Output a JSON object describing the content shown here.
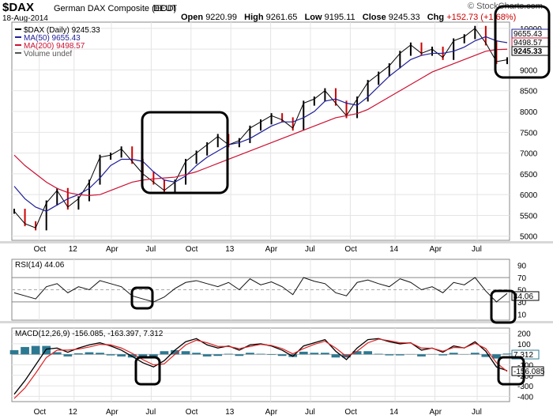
{
  "header": {
    "symbol": "$DAX",
    "name": "German DAX Composite (EOD)",
    "exchange": "DEUT",
    "date": "18-Aug-2014",
    "brand": "© StockCharts.com",
    "open_label": "Open",
    "open": "9220.99",
    "high_label": "High",
    "high": "9261.65",
    "low_label": "Low",
    "low": "9195.11",
    "close_label": "Close",
    "close": "9245.33",
    "chg_label": "Chg",
    "chg": "+152.73 (+1.68%)"
  },
  "colors": {
    "ma50": "#1f1f99",
    "ma200": "#cc1133",
    "up": "#000000",
    "down": "#cc0000",
    "rsi_fill": "#4a8a4a",
    "macd_hist": "#2d7891",
    "signal": "#dd2222"
  },
  "chart_data": [
    {
      "type": "line",
      "title": "$DAX (Daily) 9245.33",
      "legend": [
        "$DAX (Daily) 9245.33",
        "MA(50) 9655.43",
        "MA(200) 9498.57",
        "Volume undef"
      ],
      "x_tick_labels": [
        "Oct",
        "12",
        "Apr",
        "Jul",
        "Oct",
        "13",
        "Apr",
        "Jul",
        "Oct",
        "14",
        "Apr",
        "Jul"
      ],
      "y_ticks": [
        5000,
        5500,
        6000,
        6500,
        7000,
        7500,
        8000,
        8500,
        9000,
        9500,
        10000
      ],
      "ylim": [
        4900,
        10150
      ],
      "value_tags": [
        "9655.43",
        "9498.57",
        "9245.33"
      ],
      "series": [
        {
          "name": "$DAX",
          "values": [
            5600,
            5300,
            5200,
            5800,
            6100,
            5700,
            5900,
            6300,
            6900,
            6950,
            7100,
            6800,
            6500,
            6300,
            6100,
            6300,
            6800,
            7000,
            7200,
            7400,
            7200,
            7300,
            7600,
            7750,
            7900,
            7800,
            7600,
            8200,
            8300,
            8500,
            8200,
            7900,
            8300,
            8700,
            8900,
            9100,
            9400,
            9600,
            9400,
            9500,
            9300,
            9700,
            9800,
            10000,
            9650,
            9200,
            9245
          ]
        },
        {
          "name": "MA(50)",
          "values": [
            6200,
            5900,
            5700,
            5600,
            5750,
            5900,
            6000,
            6150,
            6400,
            6700,
            6850,
            6850,
            6800,
            6550,
            6350,
            6300,
            6450,
            6700,
            6900,
            7050,
            7200,
            7250,
            7350,
            7500,
            7650,
            7750,
            7750,
            7850,
            8000,
            8250,
            8300,
            8200,
            8150,
            8350,
            8600,
            8850,
            9050,
            9250,
            9350,
            9400,
            9400,
            9450,
            9550,
            9700,
            9800,
            9700,
            9655
          ]
        },
        {
          "name": "MA(200)",
          "values": [
            6950,
            6700,
            6500,
            6300,
            6150,
            6050,
            6000,
            5980,
            6000,
            6100,
            6200,
            6300,
            6350,
            6380,
            6400,
            6420,
            6480,
            6550,
            6650,
            6750,
            6850,
            6950,
            7050,
            7150,
            7250,
            7350,
            7450,
            7550,
            7650,
            7750,
            7850,
            7900,
            7950,
            8050,
            8200,
            8350,
            8500,
            8650,
            8800,
            8950,
            9050,
            9150,
            9250,
            9350,
            9450,
            9490,
            9498
          ]
        }
      ]
    },
    {
      "type": "line",
      "title": "RSI(14) 44.06",
      "y_ticks": [
        10,
        30,
        50,
        70,
        90
      ],
      "ylim": [
        0,
        100
      ],
      "value_tag": "44.06",
      "series": [
        {
          "name": "RSI(14)",
          "values": [
            45,
            40,
            35,
            55,
            60,
            45,
            55,
            50,
            65,
            60,
            55,
            40,
            35,
            30,
            38,
            52,
            62,
            65,
            60,
            55,
            62,
            50,
            68,
            58,
            63,
            55,
            42,
            70,
            64,
            60,
            45,
            40,
            62,
            66,
            60,
            55,
            68,
            62,
            50,
            55,
            45,
            62,
            58,
            70,
            48,
            30,
            44
          ]
        }
      ]
    },
    {
      "type": "line",
      "title": "MACD(12,26,9) -156.085, -163.397, 7.312",
      "y_ticks": [
        -400,
        -300,
        -200,
        -100,
        0,
        100,
        200
      ],
      "ylim": [
        -450,
        250
      ],
      "value_tags": [
        "7.312",
        "-156.085"
      ],
      "series": [
        {
          "name": "MACD",
          "values": [
            -380,
            -250,
            -100,
            50,
            60,
            20,
            60,
            90,
            110,
            80,
            40,
            -20,
            -80,
            -120,
            -60,
            40,
            120,
            150,
            90,
            60,
            80,
            40,
            90,
            100,
            80,
            40,
            -20,
            80,
            110,
            140,
            30,
            -50,
            60,
            140,
            150,
            120,
            100,
            110,
            40,
            60,
            20,
            80,
            60,
            120,
            30,
            -120,
            -156
          ]
        },
        {
          "name": "Signal",
          "values": [
            -420,
            -320,
            -180,
            -30,
            40,
            40,
            50,
            70,
            95,
            90,
            60,
            10,
            -50,
            -100,
            -90,
            0,
            90,
            135,
            110,
            75,
            75,
            55,
            75,
            95,
            85,
            55,
            5,
            55,
            95,
            125,
            60,
            -20,
            30,
            110,
            145,
            130,
            110,
            108,
            60,
            58,
            30,
            65,
            62,
            105,
            55,
            -80,
            -163
          ]
        },
        {
          "name": "Histogram",
          "values": [
            40,
            70,
            80,
            80,
            20,
            -20,
            10,
            20,
            15,
            -10,
            -20,
            -30,
            -30,
            -20,
            30,
            40,
            30,
            15,
            -20,
            -15,
            5,
            -15,
            15,
            5,
            -5,
            -15,
            -25,
            25,
            15,
            15,
            -30,
            -30,
            30,
            30,
            5,
            -10,
            -10,
            2,
            -20,
            2,
            -10,
            15,
            -2,
            15,
            -25,
            -40,
            7
          ]
        }
      ]
    }
  ]
}
